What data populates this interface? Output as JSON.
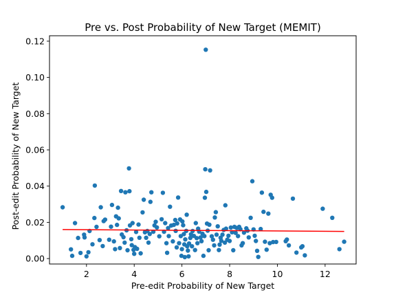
{
  "chart_data": {
    "type": "scatter",
    "title": "Pre vs. Post Probability of New Target (MEMIT)",
    "xlabel": "Pre-edit Probability of New Target",
    "ylabel": "Post-edit Probability of New Target",
    "xlim": [
      0.45,
      13.3
    ],
    "ylim": [
      -0.003,
      0.123
    ],
    "xticks": [
      2,
      4,
      6,
      8,
      10,
      12
    ],
    "yticks": [
      0.0,
      0.02,
      0.04,
      0.06,
      0.08,
      0.1,
      0.12
    ],
    "ytick_labels": [
      "0.00",
      "0.02",
      "0.04",
      "0.06",
      "0.08",
      "0.10",
      "0.12"
    ],
    "grid": false,
    "point_color": "#1f77b4",
    "trend_color": "#ff0000",
    "trend_line": {
      "x": [
        1.0,
        12.8
      ],
      "y": [
        0.016,
        0.015
      ]
    },
    "points": [
      [
        1.0,
        0.0283
      ],
      [
        1.35,
        0.0051
      ],
      [
        1.4,
        0.0015
      ],
      [
        1.52,
        0.0196
      ],
      [
        1.65,
        0.0114
      ],
      [
        1.75,
        0.0031
      ],
      [
        1.9,
        0.0132
      ],
      [
        1.92,
        0.0117
      ],
      [
        2.0,
        0.0012
      ],
      [
        2.08,
        0.0035
      ],
      [
        2.13,
        0.0152
      ],
      [
        2.25,
        0.0079
      ],
      [
        2.35,
        0.0403
      ],
      [
        2.33,
        0.0224
      ],
      [
        2.42,
        0.0175
      ],
      [
        2.55,
        0.0102
      ],
      [
        2.6,
        0.0283
      ],
      [
        2.68,
        0.0069
      ],
      [
        2.72,
        0.0207
      ],
      [
        2.78,
        0.0215
      ],
      [
        2.95,
        0.0104
      ],
      [
        3.03,
        0.0176
      ],
      [
        3.07,
        0.0296
      ],
      [
        3.15,
        0.0095
      ],
      [
        3.2,
        0.0052
      ],
      [
        3.24,
        0.0233
      ],
      [
        3.28,
        0.0186
      ],
      [
        3.32,
        0.0281
      ],
      [
        3.35,
        0.0222
      ],
      [
        3.4,
        0.0058
      ],
      [
        3.45,
        0.0373
      ],
      [
        3.48,
        0.0133
      ],
      [
        3.55,
        0.0118
      ],
      [
        3.6,
        0.0088
      ],
      [
        3.63,
        0.0366
      ],
      [
        3.68,
        0.0156
      ],
      [
        3.72,
        0.0046
      ],
      [
        3.78,
        0.0498
      ],
      [
        3.8,
        0.0372
      ],
      [
        3.82,
        0.0183
      ],
      [
        3.88,
        0.0107
      ],
      [
        3.9,
        0.0074
      ],
      [
        3.93,
        0.0196
      ],
      [
        3.97,
        0.0048
      ],
      [
        4.0,
        0.0026
      ],
      [
        4.03,
        0.0063
      ],
      [
        4.08,
        0.0147
      ],
      [
        4.12,
        0.0054
      ],
      [
        4.18,
        0.0188
      ],
      [
        4.22,
        0.0115
      ],
      [
        4.27,
        0.0029
      ],
      [
        4.35,
        0.0255
      ],
      [
        4.4,
        0.0325
      ],
      [
        4.45,
        0.0145
      ],
      [
        4.5,
        0.0115
      ],
      [
        4.55,
        0.0152
      ],
      [
        4.6,
        0.0088
      ],
      [
        4.65,
        0.0136
      ],
      [
        4.68,
        0.0313
      ],
      [
        4.72,
        0.0366
      ],
      [
        4.8,
        0.0148
      ],
      [
        4.85,
        0.0183
      ],
      [
        4.9,
        0.0203
      ],
      [
        4.95,
        0.0172
      ],
      [
        5.05,
        0.0123
      ],
      [
        5.15,
        0.0217
      ],
      [
        5.2,
        0.0363
      ],
      [
        5.25,
        0.0148
      ],
      [
        5.3,
        0.0196
      ],
      [
        5.35,
        0.0085
      ],
      [
        5.38,
        0.0032
      ],
      [
        5.42,
        0.0168
      ],
      [
        5.45,
        0.0124
      ],
      [
        5.5,
        0.0286
      ],
      [
        5.55,
        0.0182
      ],
      [
        5.62,
        0.0095
      ],
      [
        5.66,
        0.0186
      ],
      [
        5.72,
        0.0213
      ],
      [
        5.74,
        0.0153
      ],
      [
        5.78,
        0.0062
      ],
      [
        5.8,
        0.0194
      ],
      [
        5.84,
        0.0337
      ],
      [
        5.88,
        0.0085
      ],
      [
        5.92,
        0.0216
      ],
      [
        5.95,
        0.0124
      ],
      [
        5.98,
        0.0015
      ],
      [
        6.0,
        0.0052
      ],
      [
        6.02,
        0.0205
      ],
      [
        6.05,
        0.0184
      ],
      [
        6.08,
        0.0135
      ],
      [
        6.1,
        0.0078
      ],
      [
        6.12,
        0.0008
      ],
      [
        6.14,
        0.0106
      ],
      [
        6.18,
        0.0153
      ],
      [
        6.2,
        0.0242
      ],
      [
        6.22,
        0.0068
      ],
      [
        6.25,
        0.0044
      ],
      [
        6.28,
        0.0012
      ],
      [
        6.3,
        0.0083
      ],
      [
        6.35,
        0.0114
      ],
      [
        6.38,
        0.0134
      ],
      [
        6.42,
        0.0068
      ],
      [
        6.45,
        0.0152
      ],
      [
        6.5,
        0.0125
      ],
      [
        6.55,
        0.0047
      ],
      [
        6.58,
        0.0196
      ],
      [
        6.62,
        0.0113
      ],
      [
        6.65,
        0.0085
      ],
      [
        6.68,
        0.0165
      ],
      [
        6.72,
        0.0149
      ],
      [
        6.78,
        0.0116
      ],
      [
        6.82,
        0.0096
      ],
      [
        6.86,
        0.0137
      ],
      [
        6.9,
        0.0015
      ],
      [
        6.94,
        0.0124
      ],
      [
        6.96,
        0.0336
      ],
      [
        6.98,
        0.0493
      ],
      [
        7.0,
        0.1153
      ],
      [
        7.02,
        0.0368
      ],
      [
        7.05,
        0.0193
      ],
      [
        7.08,
        0.0154
      ],
      [
        7.12,
        0.0046
      ],
      [
        7.15,
        0.0187
      ],
      [
        7.18,
        0.0487
      ],
      [
        7.25,
        0.0123
      ],
      [
        7.3,
        0.0104
      ],
      [
        7.35,
        0.0073
      ],
      [
        7.38,
        0.0227
      ],
      [
        7.42,
        0.0256
      ],
      [
        7.45,
        0.0132
      ],
      [
        7.5,
        0.0178
      ],
      [
        7.55,
        0.0047
      ],
      [
        7.58,
        0.0077
      ],
      [
        7.62,
        0.0115
      ],
      [
        7.65,
        0.0098
      ],
      [
        7.7,
        0.0132
      ],
      [
        7.75,
        0.0158
      ],
      [
        7.8,
        0.0088
      ],
      [
        7.82,
        0.0294
      ],
      [
        7.85,
        0.0165
      ],
      [
        7.9,
        0.0104
      ],
      [
        7.95,
        0.0126
      ],
      [
        8.0,
        0.0097
      ],
      [
        8.05,
        0.0171
      ],
      [
        8.1,
        0.0145
      ],
      [
        8.15,
        0.0046
      ],
      [
        8.2,
        0.0175
      ],
      [
        8.25,
        0.0142
      ],
      [
        8.3,
        0.0169
      ],
      [
        8.35,
        0.0124
      ],
      [
        8.4,
        0.0175
      ],
      [
        8.45,
        0.0162
      ],
      [
        8.5,
        0.0073
      ],
      [
        8.55,
        0.0085
      ],
      [
        8.6,
        0.0143
      ],
      [
        8.7,
        0.0167
      ],
      [
        8.75,
        0.0154
      ],
      [
        8.8,
        0.0117
      ],
      [
        8.88,
        0.0225
      ],
      [
        8.95,
        0.0427
      ],
      [
        9.0,
        0.0161
      ],
      [
        9.05,
        0.0126
      ],
      [
        9.1,
        0.0097
      ],
      [
        9.15,
        0.0043
      ],
      [
        9.2,
        0.0009
      ],
      [
        9.3,
        0.0163
      ],
      [
        9.35,
        0.0364
      ],
      [
        9.42,
        0.0258
      ],
      [
        9.48,
        0.0093
      ],
      [
        9.55,
        0.0049
      ],
      [
        9.62,
        0.0248
      ],
      [
        9.68,
        0.0085
      ],
      [
        9.72,
        0.0352
      ],
      [
        9.78,
        0.0336
      ],
      [
        9.82,
        0.0091
      ],
      [
        9.95,
        0.0092
      ],
      [
        10.35,
        0.0096
      ],
      [
        10.4,
        0.0105
      ],
      [
        10.48,
        0.0073
      ],
      [
        10.65,
        0.0331
      ],
      [
        10.8,
        0.0033
      ],
      [
        11.0,
        0.0062
      ],
      [
        11.05,
        0.0068
      ],
      [
        11.15,
        0.0018
      ],
      [
        11.9,
        0.0275
      ],
      [
        12.3,
        0.0225
      ],
      [
        12.6,
        0.0052
      ],
      [
        12.8,
        0.0093
      ]
    ]
  }
}
